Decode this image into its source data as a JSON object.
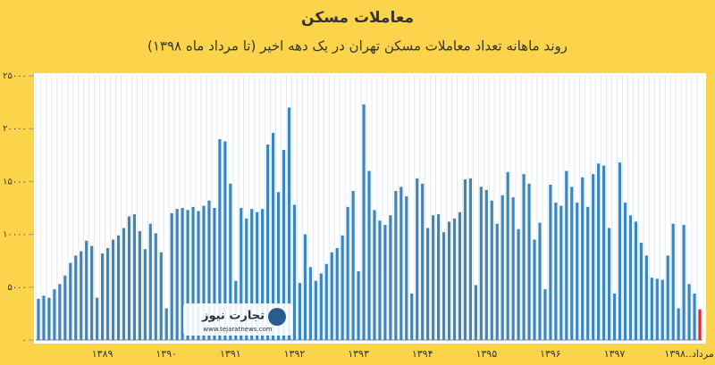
{
  "chart_data": {
    "type": "bar",
    "title": "معاملات مسکن",
    "subtitle": "روند ماهانه تعداد معاملات مسکن تهران در یک دهه اخیر (تا مرداد ماه ۱۳۹۸)",
    "watermark": {
      "name": "تجارت نیوز",
      "url": "www.tejaratnews.com"
    },
    "categories": [
      null,
      null,
      null,
      null,
      null,
      null,
      null,
      null,
      null,
      null,
      null,
      null,
      "۱۳۸۹",
      null,
      null,
      null,
      null,
      null,
      null,
      null,
      null,
      null,
      null,
      null,
      "۱۳۹۰",
      null,
      null,
      null,
      null,
      null,
      null,
      null,
      null,
      null,
      null,
      null,
      "۱۳۹۱",
      null,
      null,
      null,
      null,
      null,
      null,
      null,
      null,
      null,
      null,
      null,
      "۱۳۹۲",
      null,
      null,
      null,
      null,
      null,
      null,
      null,
      null,
      null,
      null,
      null,
      "۱۳۹۳",
      null,
      null,
      null,
      null,
      null,
      null,
      null,
      null,
      null,
      null,
      null,
      "۱۳۹۴",
      null,
      null,
      null,
      null,
      null,
      null,
      null,
      null,
      null,
      null,
      null,
      "۱۳۹۵",
      null,
      null,
      null,
      null,
      null,
      null,
      null,
      null,
      null,
      null,
      null,
      "۱۳۹۶",
      null,
      null,
      null,
      null,
      null,
      null,
      null,
      null,
      null,
      null,
      null,
      "۱۳۹۷",
      null,
      null,
      null,
      null,
      null,
      null,
      null,
      null,
      null,
      null,
      null,
      null,
      null,
      "مرداد..۱۳۹۸",
      null,
      null
    ],
    "values": [
      3900,
      4200,
      4000,
      4800,
      5300,
      6100,
      7300,
      8000,
      8400,
      9400,
      8900,
      4000,
      8200,
      8700,
      9500,
      9900,
      10600,
      11700,
      11900,
      10300,
      8600,
      11000,
      10100,
      8300,
      3000,
      12000,
      12400,
      12500,
      12300,
      12600,
      12200,
      12700,
      13200,
      12500,
      19000,
      18800,
      14800,
      5600,
      12500,
      11500,
      12400,
      12100,
      12400,
      18500,
      19600,
      14000,
      18000,
      22000,
      12800,
      5400,
      10000,
      6900,
      5600,
      6300,
      7200,
      8300,
      8700,
      9900,
      12600,
      14100,
      6500,
      22300,
      16000,
      12300,
      11300,
      10900,
      11800,
      14100,
      14500,
      13600,
      4400,
      15300,
      14800,
      10600,
      11800,
      11900,
      10200,
      11200,
      11500,
      12100,
      15200,
      15300,
      5200,
      14500,
      14200,
      13200,
      11000,
      13700,
      15900,
      13500,
      10500,
      15700,
      14800,
      9500,
      11100,
      4800,
      14700,
      13000,
      12700,
      16000,
      14500,
      13000,
      15400,
      12600,
      15700,
      16700,
      16500,
      10600,
      4400,
      16800,
      13000,
      11800,
      11200,
      9200,
      8000,
      5900,
      5800,
      5700,
      8000,
      11000,
      3000,
      10900,
      5300,
      4400,
      2900
    ],
    "color": "#3b86bf",
    "highlight_color": "#e0262b",
    "ylim": [
      0,
      25000
    ],
    "yticks": [
      {
        "value": 0,
        "label": "۰"
      },
      {
        "value": 5000,
        "label": "۵۰۰۰"
      },
      {
        "value": 10000,
        "label": "۱۰۰۰۰"
      },
      {
        "value": 15000,
        "label": "۱۵۰۰۰"
      },
      {
        "value": 20000,
        "label": "۲۰۰۰۰"
      },
      {
        "value": 25000,
        "label": "۲۵۰۰۰"
      }
    ],
    "grid": true
  }
}
